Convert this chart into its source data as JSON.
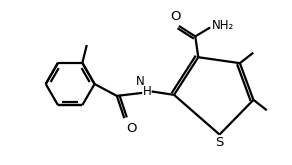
{
  "bg_color": "#ffffff",
  "line_color": "#000000",
  "line_width": 1.6,
  "font_size": 8.5,
  "figsize": [
    2.92,
    1.65
  ],
  "dpi": 100,
  "xlim": [
    0,
    9.5
  ],
  "ylim": [
    0,
    5.5
  ]
}
